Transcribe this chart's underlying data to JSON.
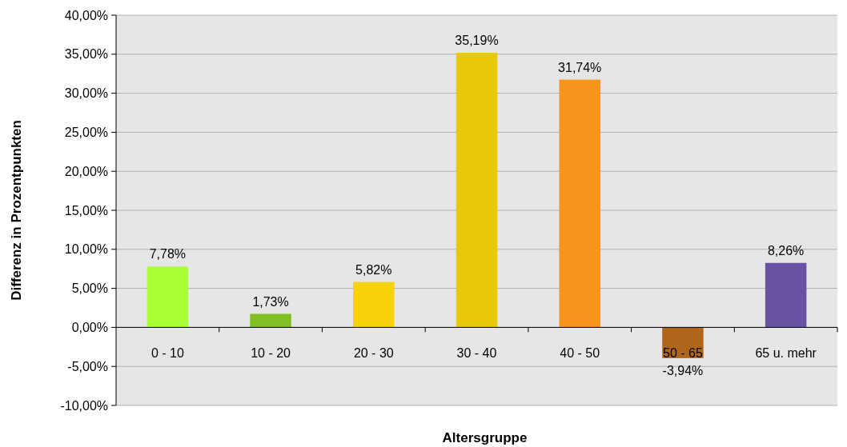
{
  "chart_data": {
    "type": "bar",
    "xlabel": "Altersgruppe",
    "ylabel": "Differenz in Prozentpunkten",
    "categories": [
      "0 - 10",
      "10 - 20",
      "20 - 30",
      "30 - 40",
      "40 - 50",
      "50 - 65",
      "65 u. mehr"
    ],
    "values": [
      7.78,
      1.73,
      5.82,
      35.19,
      31.74,
      -3.94,
      8.26
    ],
    "colors": [
      "#aaff33",
      "#82bf22",
      "#f8d20a",
      "#e8c80a",
      "#f7941d",
      "#b0661a",
      "#6952a3"
    ],
    "value_labels": [
      "7,78%",
      "1,73%",
      "5,82%",
      "35,19%",
      "31,74%",
      "-3,94%",
      "8,26%"
    ],
    "ylim": [
      -10,
      40
    ],
    "yticks": [
      {
        "value": -10,
        "label": "-10,00%"
      },
      {
        "value": -5,
        "label": "-5,00%"
      },
      {
        "value": 0,
        "label": "0,00%"
      },
      {
        "value": 5,
        "label": "5,00%"
      },
      {
        "value": 10,
        "label": "10,00%"
      },
      {
        "value": 15,
        "label": "15,00%"
      },
      {
        "value": 20,
        "label": "20,00%"
      },
      {
        "value": 25,
        "label": "25,00%"
      },
      {
        "value": 30,
        "label": "30,00%"
      },
      {
        "value": 35,
        "label": "35,00%"
      },
      {
        "value": 40,
        "label": "40,00%"
      }
    ],
    "grid": "y"
  }
}
